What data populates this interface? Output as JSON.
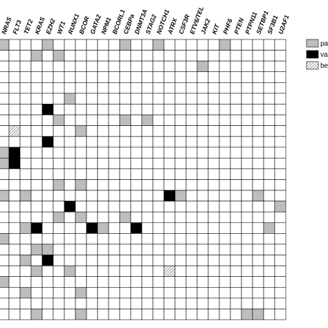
{
  "chart_data": {
    "type": "mutation-matrix",
    "columns": [
      "NRAS",
      "FLT3",
      "TET2",
      "KRAS",
      "EZH2",
      "WT1",
      "RUNX1",
      "BCOR",
      "GATA2",
      "NPM1",
      "BCORL1",
      "CEBPa",
      "DNMT3A",
      "STAG2",
      "NOTCH1",
      "ATRX",
      "CSF3R",
      "ETV6/TEL",
      "JAK2",
      "KIT",
      "PHF6",
      "PTEN",
      "PTPN11",
      "SETBP1",
      "SF3B1",
      "U2AF1"
    ],
    "legend": [
      {
        "label": "pat",
        "color": "#bdbdbd"
      },
      {
        "label": "var",
        "color": "#000000"
      },
      {
        "label": "ben",
        "color": "hatch"
      }
    ],
    "cells": [
      [
        1,
        0,
        0,
        0,
        1,
        0,
        0,
        0,
        0,
        0,
        0,
        1,
        0,
        0,
        1,
        0,
        0,
        0,
        0,
        0,
        1,
        0,
        0,
        0,
        0,
        0
      ],
      [
        0,
        0,
        0,
        1,
        0,
        1,
        0,
        0,
        0,
        0,
        0,
        0,
        0,
        0,
        0,
        0,
        0,
        0,
        0,
        0,
        0,
        0,
        0,
        0,
        0,
        0
      ],
      [
        0,
        0,
        0,
        0,
        0,
        0,
        0,
        0,
        0,
        0,
        0,
        0,
        0,
        0,
        0,
        0,
        0,
        0,
        1,
        0,
        0,
        0,
        0,
        0,
        0,
        0
      ],
      [
        0,
        0,
        0,
        0,
        0,
        0,
        0,
        0,
        0,
        0,
        0,
        0,
        0,
        0,
        0,
        0,
        0,
        0,
        0,
        0,
        0,
        0,
        0,
        0,
        0,
        0
      ],
      [
        0,
        0,
        0,
        0,
        0,
        0,
        0,
        0,
        0,
        0,
        0,
        0,
        0,
        0,
        0,
        0,
        0,
        0,
        0,
        0,
        0,
        0,
        0,
        0,
        0,
        0
      ],
      [
        0,
        0,
        0,
        0,
        0,
        0,
        1,
        0,
        0,
        0,
        0,
        0,
        0,
        0,
        0,
        0,
        0,
        0,
        0,
        0,
        0,
        0,
        0,
        0,
        0,
        0
      ],
      [
        0,
        0,
        0,
        0,
        2,
        0,
        0,
        0,
        0,
        0,
        0,
        0,
        0,
        0,
        0,
        0,
        0,
        0,
        0,
        0,
        0,
        0,
        0,
        0,
        0,
        0
      ],
      [
        0,
        0,
        0,
        0,
        0,
        1,
        0,
        0,
        0,
        0,
        0,
        1,
        0,
        1,
        0,
        0,
        0,
        0,
        0,
        0,
        0,
        0,
        0,
        0,
        0,
        0
      ],
      [
        0,
        3,
        0,
        0,
        0,
        0,
        0,
        1,
        0,
        0,
        0,
        0,
        0,
        0,
        0,
        0,
        0,
        0,
        0,
        0,
        0,
        0,
        0,
        0,
        0,
        0
      ],
      [
        0,
        0,
        0,
        0,
        2,
        0,
        0,
        0,
        0,
        0,
        0,
        0,
        0,
        0,
        0,
        0,
        0,
        0,
        0,
        0,
        0,
        0,
        0,
        0,
        0,
        0
      ],
      [
        1,
        2,
        0,
        0,
        0,
        0,
        0,
        0,
        0,
        0,
        0,
        0,
        0,
        0,
        0,
        0,
        0,
        0,
        0,
        0,
        0,
        0,
        0,
        0,
        0,
        0
      ],
      [
        1,
        2,
        0,
        0,
        0,
        0,
        0,
        0,
        0,
        0,
        0,
        0,
        0,
        0,
        0,
        0,
        0,
        0,
        0,
        0,
        0,
        0,
        0,
        0,
        0,
        0
      ],
      [
        0,
        0,
        0,
        0,
        0,
        0,
        0,
        0,
        0,
        0,
        0,
        0,
        0,
        0,
        0,
        0,
        0,
        0,
        0,
        0,
        0,
        0,
        0,
        0,
        0,
        0
      ],
      [
        0,
        0,
        0,
        0,
        0,
        1,
        0,
        1,
        0,
        0,
        0,
        0,
        0,
        0,
        0,
        0,
        0,
        0,
        0,
        0,
        0,
        0,
        0,
        0,
        0,
        0
      ],
      [
        1,
        0,
        1,
        0,
        0,
        0,
        0,
        0,
        0,
        0,
        0,
        0,
        0,
        0,
        0,
        2,
        1,
        0,
        0,
        0,
        0,
        0,
        0,
        1,
        0,
        0
      ],
      [
        0,
        0,
        0,
        0,
        0,
        0,
        2,
        0,
        0,
        0,
        0,
        0,
        0,
        0,
        0,
        0,
        0,
        0,
        0,
        0,
        0,
        0,
        0,
        0,
        0,
        1
      ],
      [
        0,
        0,
        0,
        0,
        0,
        1,
        0,
        1,
        0,
        0,
        0,
        1,
        0,
        0,
        0,
        0,
        0,
        0,
        0,
        0,
        0,
        0,
        0,
        0,
        0,
        0
      ],
      [
        0,
        0,
        1,
        2,
        0,
        0,
        0,
        0,
        2,
        1,
        0,
        0,
        2,
        0,
        0,
        0,
        0,
        0,
        0,
        0,
        0,
        0,
        0,
        0,
        1,
        0
      ],
      [
        1,
        0,
        0,
        0,
        0,
        0,
        0,
        0,
        0,
        0,
        0,
        0,
        0,
        0,
        0,
        0,
        0,
        0,
        0,
        0,
        0,
        0,
        0,
        0,
        0,
        0
      ],
      [
        0,
        0,
        0,
        1,
        1,
        0,
        0,
        0,
        0,
        0,
        0,
        0,
        0,
        0,
        0,
        0,
        0,
        0,
        0,
        0,
        0,
        0,
        0,
        0,
        0,
        0
      ],
      [
        0,
        0,
        1,
        0,
        2,
        0,
        0,
        0,
        0,
        0,
        0,
        0,
        0,
        0,
        0,
        0,
        0,
        0,
        0,
        0,
        0,
        0,
        0,
        0,
        0,
        0
      ],
      [
        0,
        0,
        0,
        1,
        0,
        0,
        1,
        0,
        0,
        0,
        0,
        0,
        0,
        0,
        0,
        3,
        0,
        0,
        0,
        0,
        0,
        0,
        0,
        0,
        0,
        0
      ],
      [
        1,
        0,
        0,
        0,
        0,
        0,
        0,
        0,
        0,
        0,
        0,
        0,
        0,
        0,
        0,
        0,
        0,
        0,
        0,
        0,
        0,
        0,
        0,
        0,
        0,
        0
      ],
      [
        0,
        0,
        1,
        0,
        0,
        0,
        0,
        1,
        0,
        0,
        0,
        0,
        0,
        0,
        0,
        0,
        0,
        0,
        0,
        0,
        0,
        0,
        0,
        0,
        0,
        0
      ],
      [
        0,
        0,
        0,
        0,
        0,
        0,
        0,
        0,
        0,
        0,
        0,
        0,
        0,
        0,
        0,
        0,
        0,
        0,
        0,
        0,
        0,
        0,
        0,
        0,
        0,
        0
      ],
      [
        0,
        0,
        0,
        1,
        0,
        0,
        0,
        1,
        0,
        0,
        0,
        0,
        0,
        0,
        0,
        0,
        0,
        0,
        0,
        0,
        0,
        0,
        1,
        1,
        0,
        0
      ]
    ]
  }
}
